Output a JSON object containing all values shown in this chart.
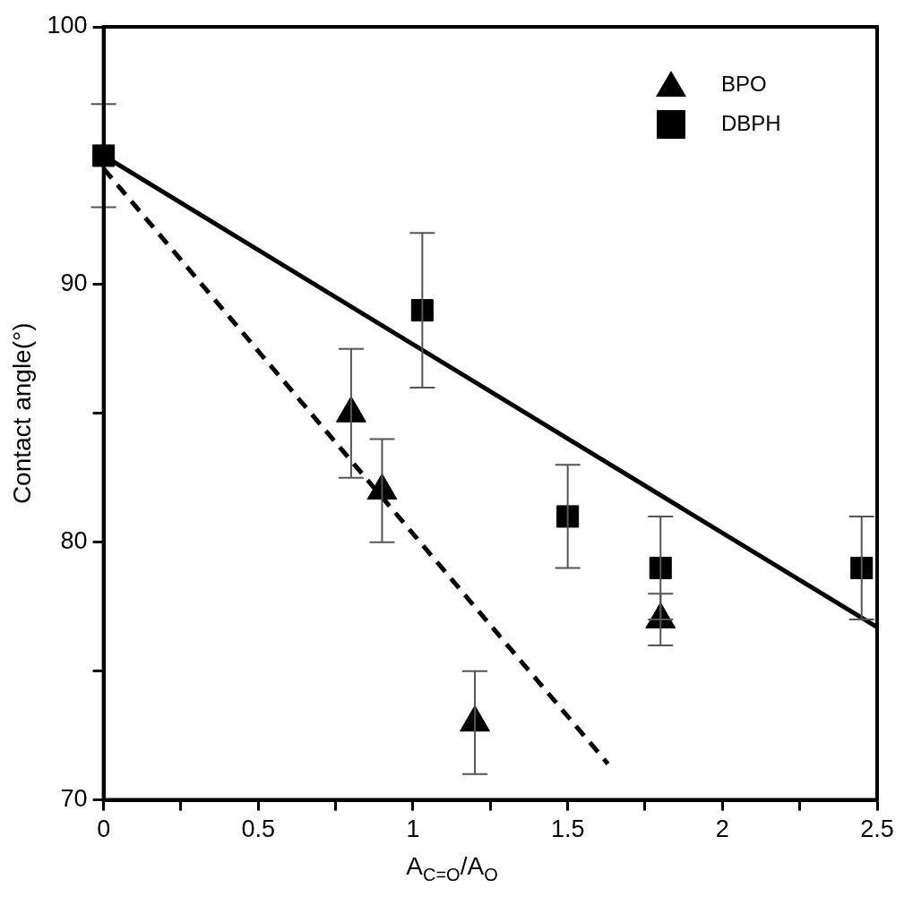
{
  "chart_data": {
    "type": "scatter",
    "xlabel": "A$_{C=O}$/A$_{O}$",
    "ylabel": "Contact angle(°)",
    "xlim": [
      0,
      2.5
    ],
    "xticks": [
      0,
      {
        "value": 0.25,
        "label": null
      },
      0.5,
      {
        "value": 0.75,
        "label": null
      },
      1,
      {
        "value": 1.25,
        "label": null
      },
      1.5,
      {
        "value": 1.75,
        "label": null
      },
      2,
      {
        "value": 2.25,
        "label": null
      },
      2.5
    ],
    "ylim": [
      70,
      100
    ],
    "yticks": [
      70,
      {
        "value": 75,
        "label": null
      },
      80,
      {
        "value": 85,
        "label": null
      },
      90,
      {
        "value": 95,
        "label": null
      },
      100
    ],
    "grid": false,
    "legend": "top right",
    "series": [
      {
        "name": "BPO",
        "type": "scatter",
        "marker": "triangle",
        "color": "#000000",
        "x": [
          0.8,
          0.9,
          1.2,
          1.8
        ],
        "values": [
          85,
          82,
          73,
          77
        ],
        "errors": [
          2.5,
          2,
          2,
          1
        ]
      },
      {
        "name": "DBPH",
        "type": "scatter",
        "marker": "square",
        "color": "#000000",
        "x": [
          0,
          1.03,
          1.5,
          1.8,
          2.45
        ],
        "values": [
          95,
          89,
          81,
          79,
          79
        ],
        "errors": [
          2,
          3,
          2,
          2,
          2
        ]
      },
      {
        "type": "line",
        "line_style": "solid",
        "color": "#000000",
        "x": [
          0,
          2.5
        ],
        "values": [
          95,
          76.7
        ]
      },
      {
        "type": "line",
        "line_style": "dashed",
        "color": "#000000",
        "x": [
          0,
          1.63
        ],
        "values": [
          94.5,
          71.4
        ]
      }
    ]
  }
}
